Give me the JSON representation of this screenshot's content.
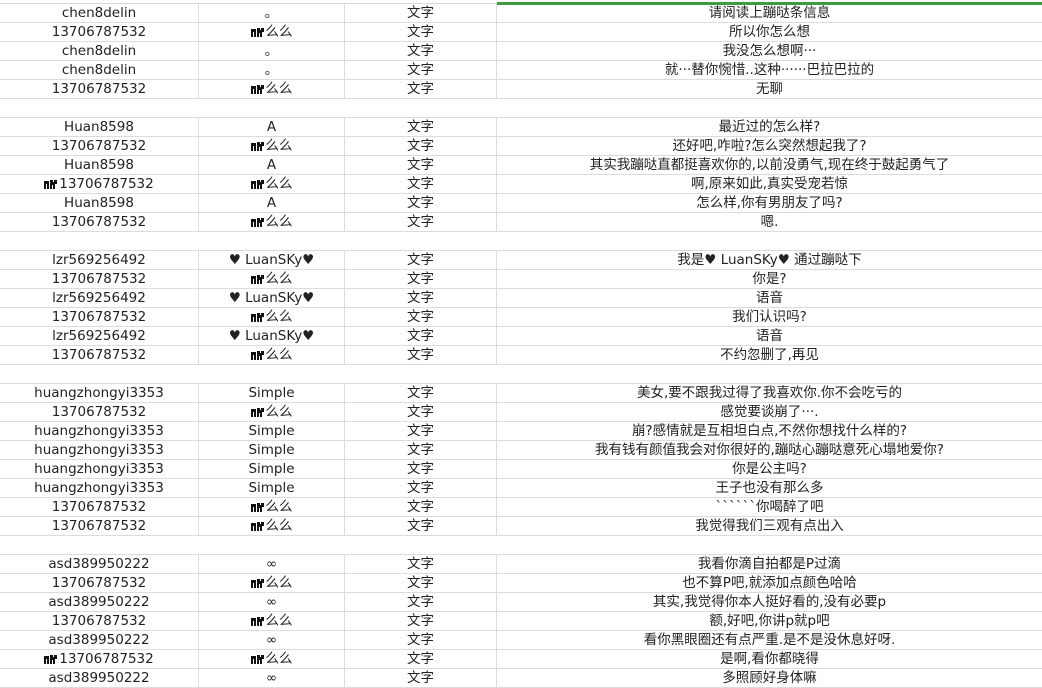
{
  "sheet": {
    "selection_color": "#3f9b3f",
    "rows": [
      {
        "user": "chen8delin",
        "nick": "。",
        "type": "文字",
        "message": "请阅读上蹦哒条信息"
      },
      {
        "user": "13706787532",
        "nick": "么么",
        "nick_icon": true,
        "type": "文字",
        "message": "所以你怎么想"
      },
      {
        "user": "chen8delin",
        "nick": "。",
        "type": "文字",
        "message": "我没怎么想啊···"
      },
      {
        "user": "chen8delin",
        "nick": "。",
        "type": "文字",
        "message": "就···替你惋惜..这种······巴拉巴拉的"
      },
      {
        "user": "13706787532",
        "nick": "么么",
        "nick_icon": true,
        "type": "文字",
        "message": "无聊"
      },
      {
        "empty": true
      },
      {
        "user": "Huan8598",
        "nick": "A",
        "type": "文字",
        "message": "最近过的怎么样?"
      },
      {
        "user": "13706787532",
        "nick": "么么",
        "nick_icon": true,
        "type": "文字",
        "message": "还好吧,咋啦?怎么突然想起我了?"
      },
      {
        "user": "Huan8598",
        "nick": "A",
        "type": "文字",
        "message": "其实我蹦哒直都挺喜欢你的,以前没勇气,现在终于鼓起勇气了"
      },
      {
        "user": "13706787532",
        "user_icon": true,
        "nick": "么么",
        "nick_icon": true,
        "type": "文字",
        "message": "啊,原来如此,真实受宠若惊"
      },
      {
        "user": "Huan8598",
        "nick": "A",
        "type": "文字",
        "message": "怎么样,你有男朋友了吗?"
      },
      {
        "user": "13706787532",
        "nick": "么么",
        "nick_icon": true,
        "type": "文字",
        "message": "嗯."
      },
      {
        "empty": true
      },
      {
        "user": "lzr569256492",
        "nick": "♥ LuanSKy♥",
        "type": "文字",
        "message": "我是♥ LuanSKy♥ 通过蹦哒下"
      },
      {
        "user": "13706787532",
        "nick": "么么",
        "nick_icon": true,
        "type": "文字",
        "message": "你是?"
      },
      {
        "user": "lzr569256492",
        "nick": "♥ LuanSKy♥",
        "type": "文字",
        "message": "语音"
      },
      {
        "user": "13706787532",
        "nick": "么么",
        "nick_icon": true,
        "type": "文字",
        "message": "我们认识吗?"
      },
      {
        "user": "lzr569256492",
        "nick": "♥ LuanSKy♥",
        "type": "文字",
        "message": "语音"
      },
      {
        "user": "13706787532",
        "nick": "么么",
        "nick_icon": true,
        "type": "文字",
        "message": "不约忽删了,再见"
      },
      {
        "empty": true
      },
      {
        "user": "huangzhongyi3353",
        "nick": "Simple",
        "type": "文字",
        "message": "美女,要不跟我过得了我喜欢你.你不会吃亏的"
      },
      {
        "user": "13706787532",
        "nick": "么么",
        "nick_icon": true,
        "type": "文字",
        "message": "感觉要谈崩了···."
      },
      {
        "user": "huangzhongyi3353",
        "nick": "Simple",
        "type": "文字",
        "message": "崩?感情就是互相坦白点,不然你想找什么样的?"
      },
      {
        "user": "huangzhongyi3353",
        "nick": "Simple",
        "type": "文字",
        "message": "我有钱有颜值我会对你很好的,蹦哒心蹦哒意死心塌地爱你?"
      },
      {
        "user": "huangzhongyi3353",
        "nick": "Simple",
        "type": "文字",
        "message": "你是公主吗?"
      },
      {
        "user": "huangzhongyi3353",
        "nick": "Simple",
        "type": "文字",
        "message": "王子也没有那么多"
      },
      {
        "user": "13706787532",
        "nick": "么么",
        "nick_icon": true,
        "type": "文字",
        "message": "``````你喝醉了吧"
      },
      {
        "user": "13706787532",
        "nick": "么么",
        "nick_icon": true,
        "type": "文字",
        "message": "我觉得我们三观有点出入"
      },
      {
        "empty": true
      },
      {
        "user": "asd389950222",
        "nick": "∞",
        "type": "文字",
        "message": "我看你滴自拍都是P过滴"
      },
      {
        "user": "13706787532",
        "nick": "么么",
        "nick_icon": true,
        "type": "文字",
        "message": "也不算P吧,就添加点颜色哈哈"
      },
      {
        "user": "asd389950222",
        "nick": "∞",
        "type": "文字",
        "message": "其实,我觉得你本人挺好看的,没有必要p"
      },
      {
        "user": "13706787532",
        "nick": "么么",
        "nick_icon": true,
        "type": "文字",
        "message": "额,好吧,你讲p就p吧"
      },
      {
        "user": "asd389950222",
        "nick": "∞",
        "type": "文字",
        "message": "看你黑眼圈还有点严重.是不是没休息好呀."
      },
      {
        "user": "13706787532",
        "user_icon": true,
        "nick": "么么",
        "nick_icon": true,
        "type": "文字",
        "message": "是啊,看你都晓得"
      },
      {
        "user": "asd389950222",
        "nick": "∞",
        "type": "文字",
        "message": "多照顾好身体嘛"
      }
    ]
  }
}
